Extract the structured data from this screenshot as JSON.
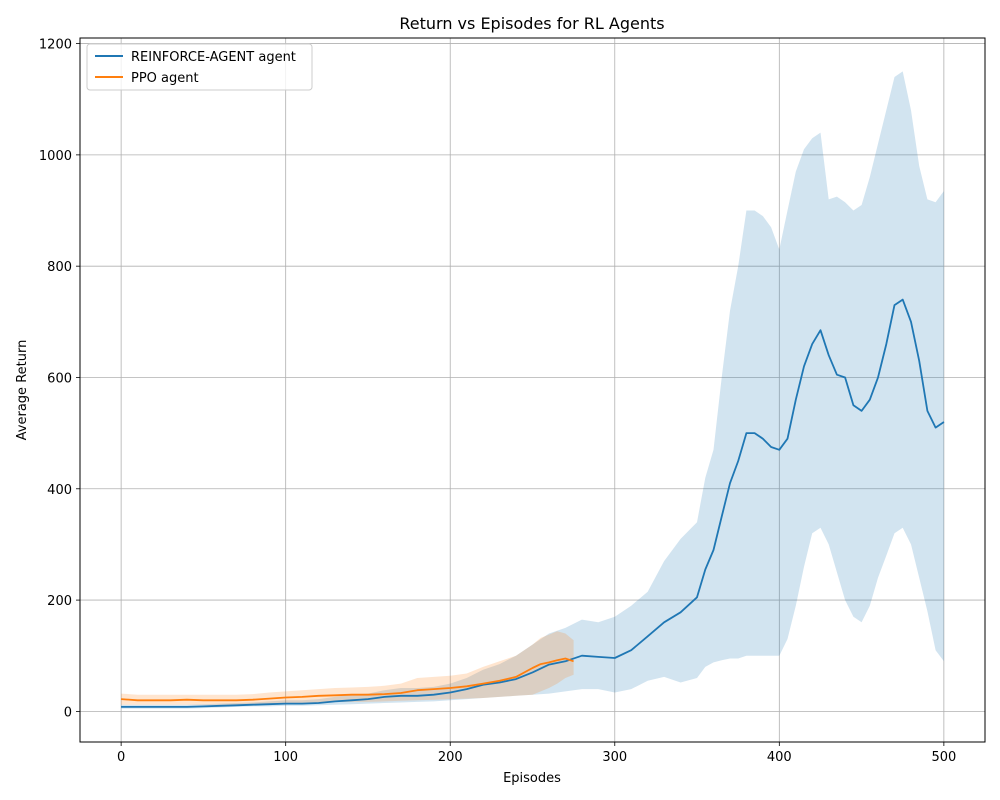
{
  "chart_data": {
    "type": "line",
    "title": "Return vs Episodes for RL Agents",
    "xlabel": "Episodes",
    "ylabel": "Average Return",
    "xlim": [
      -25,
      525
    ],
    "ylim": [
      -55,
      1210
    ],
    "xticks": [
      0,
      100,
      200,
      300,
      400,
      500
    ],
    "yticks": [
      0,
      200,
      400,
      600,
      800,
      1000,
      1200
    ],
    "grid": true,
    "legend_position": "upper-left",
    "series": [
      {
        "name": "REINFORCE-AGENT agent",
        "color": "#1f77b4",
        "band_color": "#1f77b4",
        "band_opacity": 0.2,
        "x": [
          0,
          10,
          20,
          30,
          40,
          50,
          60,
          70,
          80,
          90,
          100,
          110,
          120,
          130,
          140,
          150,
          160,
          170,
          180,
          190,
          200,
          210,
          220,
          230,
          240,
          250,
          260,
          270,
          280,
          290,
          300,
          310,
          320,
          330,
          340,
          350,
          355,
          360,
          365,
          370,
          375,
          380,
          385,
          390,
          395,
          400,
          405,
          410,
          415,
          420,
          425,
          430,
          435,
          440,
          445,
          450,
          455,
          460,
          465,
          470,
          475,
          480,
          485,
          490,
          495,
          500
        ],
        "mean": [
          8,
          8,
          8,
          8,
          8,
          9,
          10,
          11,
          12,
          13,
          14,
          14,
          15,
          18,
          20,
          22,
          26,
          28,
          28,
          30,
          34,
          40,
          48,
          52,
          58,
          70,
          84,
          90,
          100,
          98,
          96,
          110,
          135,
          160,
          178,
          205,
          255,
          290,
          350,
          410,
          450,
          500,
          500,
          490,
          475,
          470,
          490,
          560,
          620,
          660,
          685,
          640,
          605,
          600,
          550,
          540,
          560,
          600,
          660,
          730,
          740,
          700,
          630,
          540,
          510,
          520
        ],
        "lower": [
          5,
          5,
          5,
          5,
          5,
          6,
          7,
          8,
          9,
          9,
          10,
          10,
          11,
          12,
          13,
          14,
          15,
          16,
          17,
          18,
          20,
          22,
          24,
          26,
          28,
          30,
          32,
          36,
          40,
          40,
          34,
          40,
          55,
          62,
          52,
          60,
          80,
          88,
          92,
          95,
          95,
          100,
          100,
          100,
          100,
          100,
          130,
          190,
          260,
          320,
          330,
          300,
          250,
          200,
          170,
          160,
          190,
          240,
          280,
          320,
          330,
          300,
          240,
          180,
          110,
          90
        ],
        "upper": [
          12,
          12,
          12,
          12,
          12,
          13,
          14,
          15,
          16,
          18,
          20,
          20,
          22,
          26,
          30,
          32,
          38,
          42,
          42,
          44,
          50,
          60,
          75,
          85,
          100,
          120,
          140,
          150,
          165,
          160,
          170,
          190,
          215,
          270,
          310,
          340,
          420,
          470,
          600,
          720,
          800,
          900,
          900,
          890,
          870,
          830,
          900,
          970,
          1010,
          1030,
          1040,
          920,
          925,
          915,
          900,
          910,
          960,
          1020,
          1080,
          1140,
          1150,
          1080,
          980,
          920,
          915,
          935
        ]
      },
      {
        "name": "PPO agent",
        "color": "#ff7f0e",
        "band_color": "#ff7f0e",
        "band_opacity": 0.2,
        "x": [
          0,
          10,
          20,
          30,
          40,
          50,
          60,
          70,
          80,
          90,
          100,
          110,
          120,
          130,
          140,
          150,
          160,
          170,
          180,
          190,
          200,
          210,
          220,
          230,
          240,
          250,
          255,
          260,
          265,
          270,
          275
        ],
        "mean": [
          22,
          20,
          20,
          20,
          21,
          20,
          20,
          20,
          21,
          23,
          25,
          26,
          28,
          29,
          30,
          30,
          31,
          33,
          38,
          40,
          42,
          45,
          50,
          55,
          62,
          78,
          85,
          88,
          92,
          95,
          90
        ],
        "lower": [
          12,
          12,
          12,
          12,
          12,
          12,
          12,
          12,
          12,
          13,
          14,
          15,
          16,
          17,
          17,
          17,
          18,
          19,
          20,
          21,
          22,
          23,
          24,
          26,
          28,
          30,
          36,
          42,
          50,
          60,
          66
        ],
        "upper": [
          32,
          30,
          30,
          30,
          30,
          30,
          30,
          30,
          31,
          34,
          36,
          38,
          40,
          42,
          43,
          44,
          46,
          50,
          60,
          62,
          64,
          68,
          80,
          90,
          100,
          120,
          132,
          138,
          144,
          140,
          128
        ]
      }
    ]
  }
}
